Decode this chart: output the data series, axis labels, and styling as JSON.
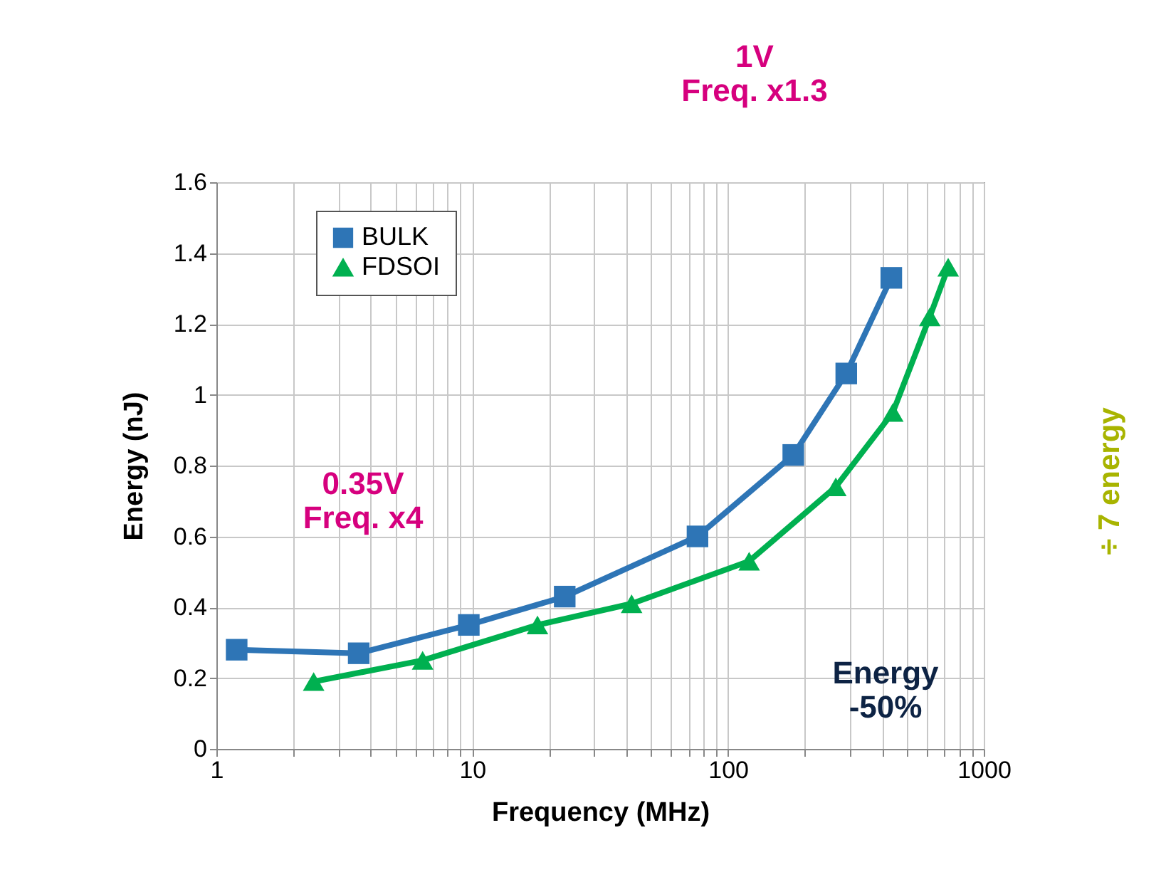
{
  "chart_data": {
    "type": "line",
    "xlabel": "Frequency (MHz)",
    "ylabel": "Energy (nJ)",
    "log": "x",
    "xlim": [
      1,
      1000
    ],
    "xticks": [
      1,
      {
        "value": 2,
        "label": null
      },
      {
        "value": 3,
        "label": null
      },
      {
        "value": 4,
        "label": null
      },
      {
        "value": 5,
        "label": null
      },
      {
        "value": 6,
        "label": null
      },
      {
        "value": 7,
        "label": null
      },
      {
        "value": 8,
        "label": null
      },
      {
        "value": 9,
        "label": null
      },
      10,
      {
        "value": 20,
        "label": null
      },
      {
        "value": 30,
        "label": null
      },
      {
        "value": 40,
        "label": null
      },
      {
        "value": 50,
        "label": null
      },
      {
        "value": 60,
        "label": null
      },
      {
        "value": 70,
        "label": null
      },
      {
        "value": 80,
        "label": null
      },
      {
        "value": 90,
        "label": null
      },
      100,
      {
        "value": 200,
        "label": null
      },
      {
        "value": 300,
        "label": null
      },
      {
        "value": 400,
        "label": null
      },
      {
        "value": 500,
        "label": null
      },
      {
        "value": 600,
        "label": null
      },
      {
        "value": 700,
        "label": null
      },
      {
        "value": 800,
        "label": null
      },
      {
        "value": 900,
        "label": null
      },
      1000
    ],
    "ylim": [
      0,
      1.6
    ],
    "yticks": [
      0,
      0.2,
      0.4,
      0.6,
      0.8,
      1,
      1.2,
      1.4,
      1.6
    ],
    "grid": true,
    "legend": "top left",
    "line_style": "solid",
    "series": [
      {
        "name": "BULK",
        "color": "#2e75b6",
        "marker": "square",
        "x": [
          1.2,
          3.6,
          9.7,
          23,
          76,
          180,
          290,
          435
        ],
        "values": [
          0.28,
          0.27,
          0.35,
          0.43,
          0.6,
          0.83,
          1.06,
          1.33
        ]
      },
      {
        "name": "FDSOI",
        "color": "#00b050",
        "marker": "triangle",
        "x": [
          2.4,
          6.4,
          18,
          42,
          121,
          264,
          441,
          615,
          726
        ],
        "values": [
          0.19,
          0.25,
          0.35,
          0.41,
          0.53,
          0.74,
          0.95,
          1.22,
          1.36
        ]
      }
    ],
    "annotations": [
      "1V\nFreq. x1.3",
      "0.35V\nFreq. x4",
      "Energy\n-50%",
      "÷ 7 energy"
    ]
  }
}
